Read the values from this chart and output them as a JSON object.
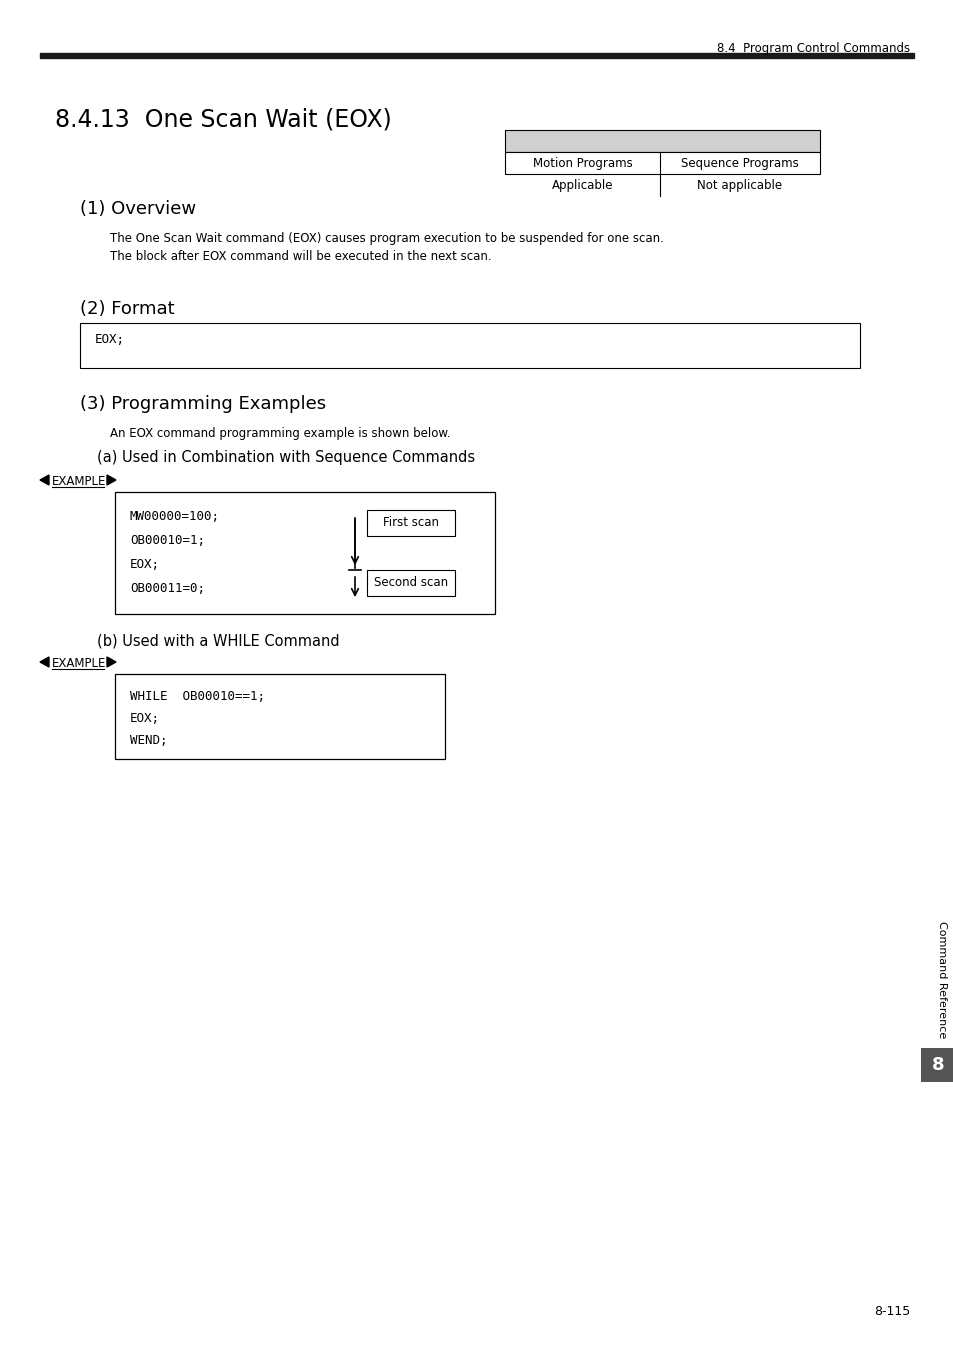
{
  "page_header_right": "8.4  Program Control Commands",
  "section_title": "8.4.13  One Scan Wait (EOX)",
  "table_headers": [
    "Motion Programs",
    "Sequence Programs"
  ],
  "table_row": [
    "Applicable",
    "Not applicable"
  ],
  "subsection1": "(1) Overview",
  "overview_text1": "The One Scan Wait command (EOX) causes program execution to be suspended for one scan.",
  "overview_text2": "The block after EOX command will be executed in the next scan.",
  "subsection2": "(2) Format",
  "format_code": "EOX;",
  "subsection3": "(3) Programming Examples",
  "prog_ex_text": "An EOX command programming example is shown below.",
  "subsection3a": "(a) Used in Combination with Sequence Commands",
  "example_label": "EXAMPLE",
  "example1_code_lines": [
    "MW00000=100;",
    "OB00010=1;",
    "EOX;",
    "OB00011=0;"
  ],
  "scan1_label": "First scan",
  "scan2_label": "Second scan",
  "subsection3b": "(b) Used with a WHILE Command",
  "example2_code_lines": [
    "WHILE  OB00010==1;",
    "EOX;",
    "WEND;"
  ],
  "sidebar_text": "Command Reference",
  "sidebar_number": "8",
  "page_number": "8-115",
  "bg_color": "#ffffff",
  "text_color": "#000000",
  "header_bar_color": "#1a1a1a",
  "table_header_bg": "#d0d0d0",
  "sidebar_number_bg": "#555555",
  "sidebar_number_fg": "#ffffff"
}
